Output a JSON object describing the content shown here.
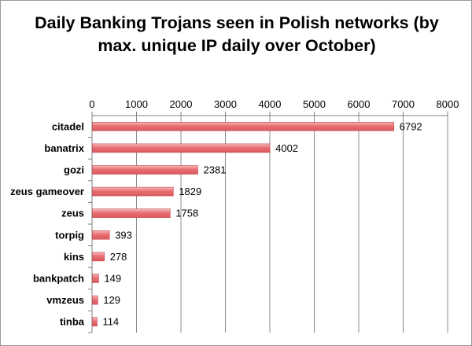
{
  "chart_data": {
    "type": "bar",
    "orientation": "horizontal",
    "title": "Daily Banking Trojans seen in Polish networks (by max. unique IP daily over October)",
    "categories": [
      "citadel",
      "banatrix",
      "gozi",
      "zeus gameover",
      "zeus",
      "torpig",
      "kins",
      "bankpatch",
      "vmzeus",
      "tinba"
    ],
    "values": [
      6792,
      4002,
      2381,
      1829,
      1758,
      393,
      278,
      149,
      129,
      114
    ],
    "xlim": [
      0,
      8000
    ],
    "x_ticks": [
      0,
      1000,
      2000,
      3000,
      4000,
      5000,
      6000,
      7000,
      8000
    ],
    "x_axis_position": "top",
    "grid": true,
    "data_labels": true,
    "bar_color": "#e0666a",
    "bar_highlight": "#f6b8b8",
    "xlabel": "",
    "ylabel": ""
  }
}
